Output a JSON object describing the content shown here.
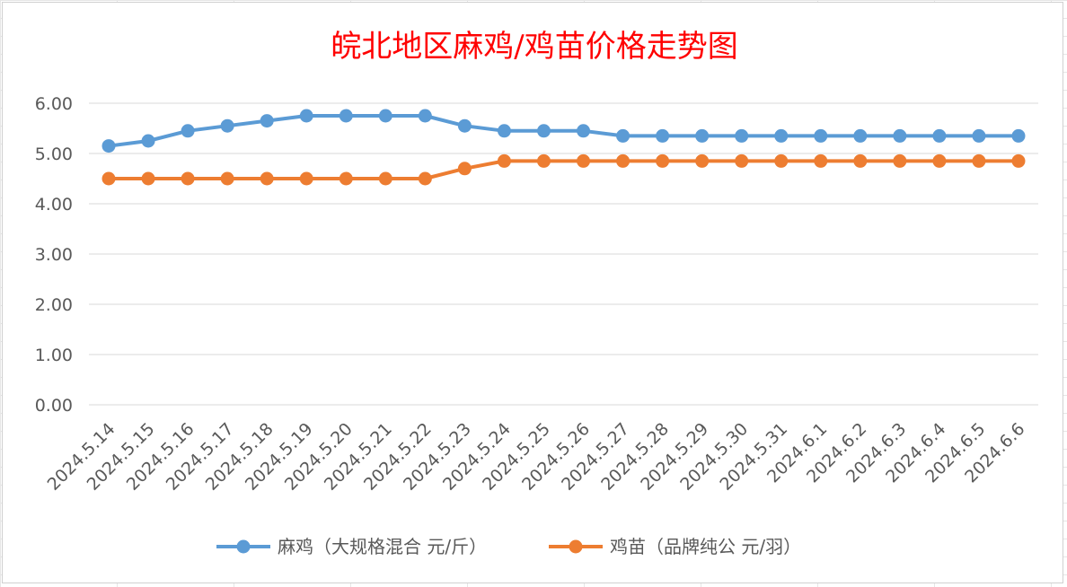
{
  "chart_data": {
    "type": "line",
    "title": "皖北地区麻鸡/鸡苗价格走势图",
    "categories": [
      "2024.5.14",
      "2024.5.15",
      "2024.5.16",
      "2024.5.17",
      "2024.5.18",
      "2024.5.19",
      "2024.5.20",
      "2024.5.21",
      "2024.5.22",
      "2024.5.23",
      "2024.5.24",
      "2024.5.25",
      "2024.5.26",
      "2024.5.27",
      "2024.5.28",
      "2024.5.29",
      "2024.5.30",
      "2024.5.31",
      "2024.6.1",
      "2024.6.2",
      "2024.6.3",
      "2024.6.4",
      "2024.6.5",
      "2024.6.6"
    ],
    "y_ticks": [
      "0.00",
      "1.00",
      "2.00",
      "3.00",
      "4.00",
      "5.00",
      "6.00"
    ],
    "ylim": [
      0,
      6
    ],
    "grid": true,
    "legend_position": "bottom",
    "series": [
      {
        "name": "麻鸡（大规格混合 元/斤）",
        "color": "#5b9bd5",
        "values": [
          5.15,
          5.25,
          5.45,
          5.55,
          5.65,
          5.75,
          5.75,
          5.75,
          5.75,
          5.55,
          5.45,
          5.45,
          5.45,
          5.35,
          5.35,
          5.35,
          5.35,
          5.35,
          5.35,
          5.35,
          5.35,
          5.35,
          5.35,
          5.35
        ]
      },
      {
        "name": "鸡苗（品牌纯公 元/羽）",
        "color": "#ed7d31",
        "values": [
          4.5,
          4.5,
          4.5,
          4.5,
          4.5,
          4.5,
          4.5,
          4.5,
          4.5,
          4.7,
          4.85,
          4.85,
          4.85,
          4.85,
          4.85,
          4.85,
          4.85,
          4.85,
          4.85,
          4.85,
          4.85,
          4.85,
          4.85,
          4.85
        ]
      }
    ]
  }
}
